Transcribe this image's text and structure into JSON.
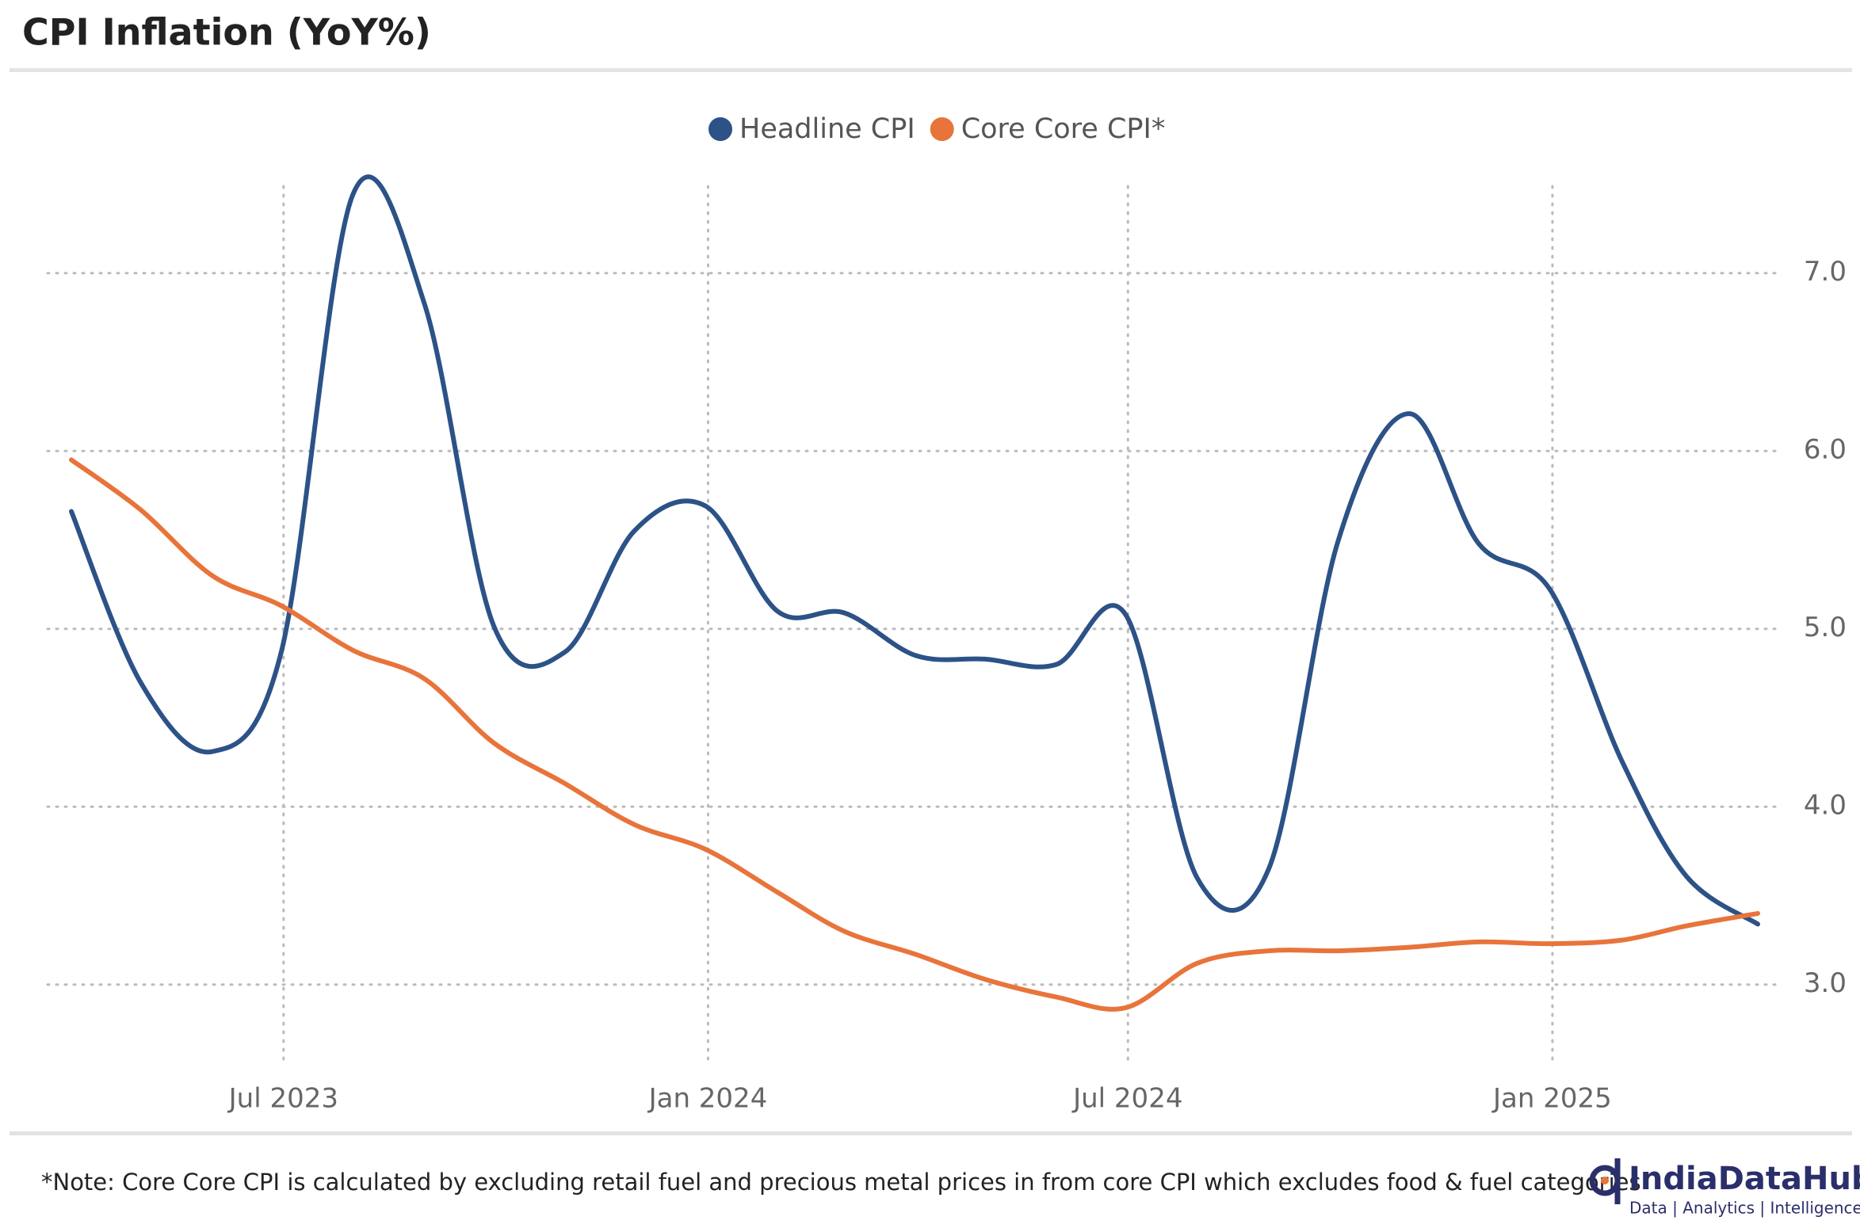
{
  "chart_data": {
    "type": "line",
    "title": "CPI Inflation (YoY%)",
    "note": "*Note: Core Core CPI is calculated by excluding retail fuel and precious metal prices in from core CPI which excludes food & fuel categories",
    "brand": {
      "name": "IndiaDataHub",
      "tagline": "Data | Analytics | Intelligence"
    },
    "x": [
      "2023-03",
      "2023-04",
      "2023-05",
      "2023-06",
      "2023-07",
      "2023-08",
      "2023-09",
      "2023-10",
      "2023-11",
      "2023-12",
      "2024-01",
      "2024-02",
      "2024-03",
      "2024-04",
      "2024-05",
      "2024-06",
      "2024-07",
      "2024-08",
      "2024-09",
      "2024-10",
      "2024-11",
      "2024-12",
      "2025-01",
      "2025-02",
      "2025-03"
    ],
    "series": [
      {
        "name": "Headline CPI",
        "color": "#2c5287",
        "values": [
          5.66,
          4.7,
          4.31,
          4.87,
          7.44,
          6.83,
          5.02,
          4.87,
          5.55,
          5.69,
          5.1,
          5.09,
          4.85,
          4.83,
          4.8,
          5.08,
          3.6,
          3.65,
          5.49,
          6.21,
          5.48,
          5.22,
          4.26,
          3.61,
          3.34
        ]
      },
      {
        "name": "Core Core CPI*",
        "color": "#e8743b",
        "values": [
          5.95,
          5.67,
          5.3,
          5.13,
          4.88,
          4.72,
          4.36,
          4.13,
          3.9,
          3.76,
          3.52,
          3.3,
          3.17,
          3.03,
          2.93,
          2.87,
          3.12,
          3.19,
          3.19,
          3.21,
          3.24,
          3.23,
          3.25,
          3.33,
          3.4
        ]
      }
    ],
    "xlim": [
      "2023-03",
      "2025-03"
    ],
    "xticks": [
      {
        "value": "2023-07",
        "label": "Jul 2023"
      },
      {
        "value": "2024-01",
        "label": "Jan 2024"
      },
      {
        "value": "2024-07",
        "label": "Jul 2024"
      },
      {
        "value": "2025-01",
        "label": "Jan 2025"
      }
    ],
    "ylim": [
      2.5,
      7.6
    ],
    "yticks": [
      {
        "value": 3,
        "label": "3.0"
      },
      {
        "value": 4,
        "label": "4.0"
      },
      {
        "value": 5,
        "label": "5.0"
      },
      {
        "value": 6,
        "label": "6.0"
      },
      {
        "value": 7,
        "label": "7.0"
      }
    ],
    "grid": true,
    "legend": "top"
  }
}
